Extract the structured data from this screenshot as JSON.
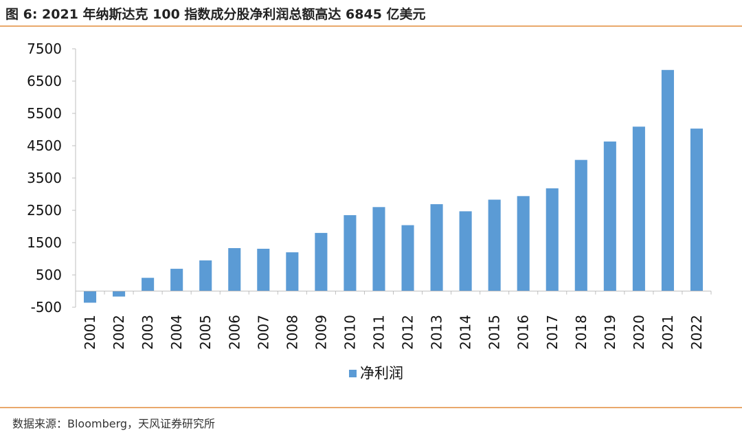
{
  "header": {
    "title": "图 6: 2021 年纳斯达克 100 指数成分股净利润总额高达 6845 亿美元"
  },
  "footer": {
    "source": "数据来源：Bloomberg，天风证券研究所"
  },
  "chart_data": {
    "type": "bar",
    "categories": [
      "2001",
      "2002",
      "2003",
      "2004",
      "2005",
      "2006",
      "2007",
      "2008",
      "2009",
      "2010",
      "2011",
      "2012",
      "2013",
      "2014",
      "2015",
      "2016",
      "2017",
      "2018",
      "2019",
      "2020",
      "2021",
      "2022"
    ],
    "series": [
      {
        "name": "净利润",
        "color": "#5b9bd5",
        "values": [
          -360,
          -170,
          410,
          690,
          950,
          1330,
          1310,
          1200,
          1800,
          2350,
          2600,
          2040,
          2690,
          2470,
          2830,
          2940,
          3180,
          4060,
          4630,
          5090,
          6845,
          5030
        ]
      }
    ],
    "yticks": [
      -500,
      500,
      1500,
      2500,
      3500,
      4500,
      5500,
      6500,
      7500
    ],
    "ylim": [
      -500,
      7500
    ],
    "grid": false,
    "legend": "bottom-center"
  }
}
